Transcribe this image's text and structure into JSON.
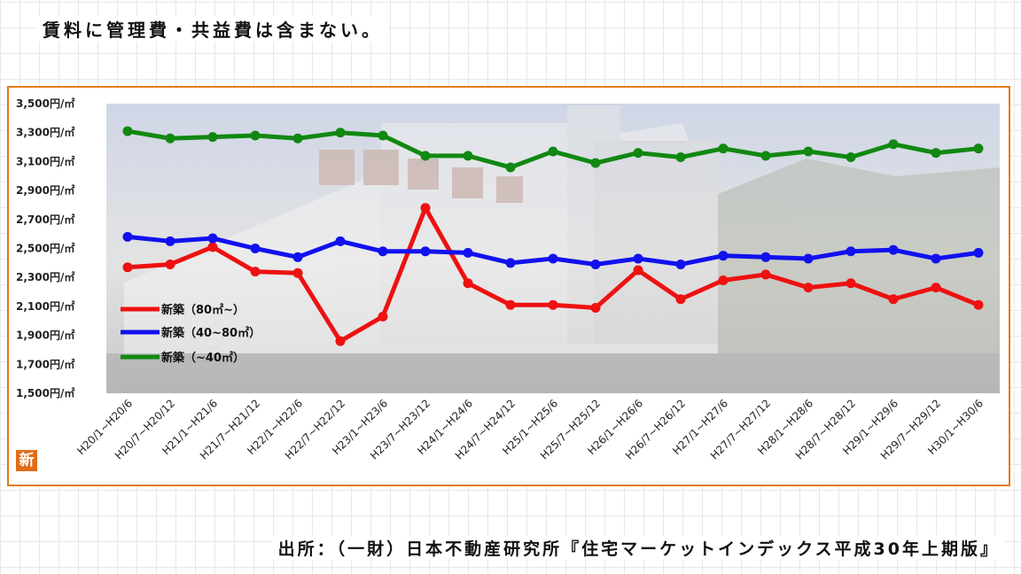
{
  "header": {
    "note": "賃料に管理費・共益費は含まない。"
  },
  "footer": {
    "source": "出所：（一財）日本不動産研究所『住宅マーケットインデックス平成30年上期版』"
  },
  "logo": {
    "text": "新"
  },
  "colors": {
    "frame": "#e07b1a",
    "series_red": "#ee1111",
    "series_blue": "#1111ee",
    "series_green": "#118811"
  },
  "chart_data": {
    "type": "line",
    "ylim": [
      1500,
      3500
    ],
    "yticks": [
      1500,
      1700,
      1900,
      2100,
      2300,
      2500,
      2700,
      2900,
      3100,
      3300,
      3500
    ],
    "ytick_labels": [
      "1,500円/㎡",
      "1,700円/㎡",
      "1,900円/㎡",
      "2,100円/㎡",
      "2,300円/㎡",
      "2,500円/㎡",
      "2,700円/㎡",
      "2,900円/㎡",
      "3,100円/㎡",
      "3,300円/㎡",
      "3,500円/㎡"
    ],
    "categories": [
      "H20/1~H20/6",
      "H20/7~H20/12",
      "H21/1~H21/6",
      "H21/7~H21/12",
      "H22/1~H22/6",
      "H22/7~H22/12",
      "H23/1~H23/6",
      "H23/7~H23/12",
      "H24/1~H24/6",
      "H24/7~H24/12",
      "H25/1~H25/6",
      "H25/7~H25/12",
      "H26/1~H26/6",
      "H26/7~H26/12",
      "H27/1~H27/6",
      "H27/7~H27/12",
      "H28/1~H28/6",
      "H28/7~H28/12",
      "H29/1~H29/6",
      "H29/7~H29/12",
      "H30/1~H30/6"
    ],
    "legend_position": "left-middle",
    "series": [
      {
        "name": "新築（80㎡~）",
        "color": "#ee1111",
        "values": [
          2370,
          2390,
          2510,
          2340,
          2330,
          1860,
          2030,
          2780,
          2260,
          2110,
          2110,
          2090,
          2350,
          2150,
          2280,
          2320,
          2230,
          2260,
          2150,
          2230,
          2110
        ]
      },
      {
        "name": "新築（40~80㎡）",
        "color": "#1111ee",
        "values": [
          2580,
          2550,
          2570,
          2500,
          2440,
          2550,
          2480,
          2480,
          2470,
          2400,
          2430,
          2390,
          2430,
          2390,
          2450,
          2440,
          2430,
          2480,
          2490,
          2430,
          2470
        ]
      },
      {
        "name": "新築（~40㎡）",
        "color": "#118811",
        "values": [
          3310,
          3260,
          3270,
          3280,
          3260,
          3300,
          3280,
          3140,
          3140,
          3060,
          3170,
          3090,
          3160,
          3130,
          3190,
          3140,
          3170,
          3130,
          3220,
          3160,
          3190
        ]
      }
    ]
  }
}
